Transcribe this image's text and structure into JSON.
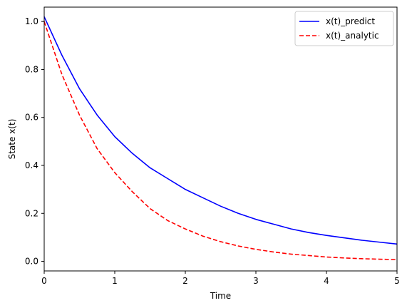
{
  "chart_data": {
    "type": "line",
    "title": "",
    "xlabel": "Time",
    "ylabel": "State x(t)",
    "xlim": [
      0,
      5
    ],
    "ylim": [
      -0.04,
      1.06
    ],
    "xticks": [
      0,
      1,
      2,
      3,
      4,
      5
    ],
    "xtick_labels": [
      "0",
      "1",
      "2",
      "3",
      "4",
      "5"
    ],
    "yticks": [
      0.0,
      0.2,
      0.4,
      0.6,
      0.8,
      1.0
    ],
    "ytick_labels": [
      "0.0",
      "0.2",
      "0.4",
      "0.6",
      "0.8",
      "1.0"
    ],
    "grid": false,
    "legend_position": "top-right",
    "x": [
      0,
      0.25,
      0.5,
      0.75,
      1.0,
      1.25,
      1.5,
      1.75,
      2.0,
      2.25,
      2.5,
      2.75,
      3.0,
      3.25,
      3.5,
      3.75,
      4.0,
      4.25,
      4.5,
      4.75,
      5.0
    ],
    "series": [
      {
        "name": "x(t)_predict",
        "color": "#0000ff",
        "style": "solid",
        "values": [
          1.02,
          0.86,
          0.72,
          0.61,
          0.52,
          0.45,
          0.39,
          0.345,
          0.3,
          0.265,
          0.23,
          0.2,
          0.175,
          0.155,
          0.135,
          0.12,
          0.108,
          0.098,
          0.088,
          0.08,
          0.072
        ]
      },
      {
        "name": "x(t)_analytic",
        "color": "#ff0000",
        "style": "dashed",
        "values": [
          1.0,
          0.78,
          0.61,
          0.47,
          0.37,
          0.29,
          0.22,
          0.17,
          0.135,
          0.105,
          0.082,
          0.064,
          0.05,
          0.039,
          0.03,
          0.024,
          0.018,
          0.014,
          0.011,
          0.009,
          0.007
        ]
      }
    ]
  }
}
